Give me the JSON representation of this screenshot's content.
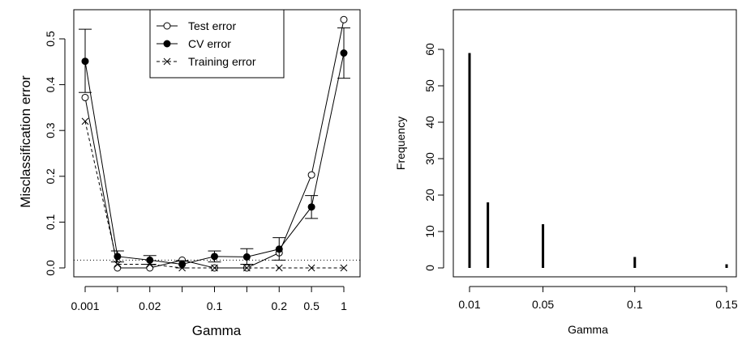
{
  "chart_data": [
    {
      "type": "line",
      "xlabel": "Gamma",
      "ylabel": "Misclassification error",
      "x_tick_labels": [
        "0.001",
        "",
        "0.02",
        "",
        "0.1",
        "",
        "0.2",
        "0.5",
        "1"
      ],
      "ylim": [
        0,
        0.55
      ],
      "y_ticks": [
        0.0,
        0.1,
        0.2,
        0.3,
        0.4,
        0.5
      ],
      "y_tick_labels": [
        "0.0",
        "0.1",
        "0.2",
        "0.3",
        "0.4",
        "0.5"
      ],
      "reference_line": 0.017,
      "legend_position": "top-center",
      "series": [
        {
          "name": "Test error",
          "marker": "open-circle",
          "line": "solid",
          "values": [
            0.372,
            0.0,
            0.0,
            0.017,
            0.0,
            0.0,
            0.033,
            0.203,
            0.542
          ]
        },
        {
          "name": "CV error",
          "marker": "filled-circle",
          "line": "solid",
          "values": [
            0.451,
            0.025,
            0.017,
            0.008,
            0.025,
            0.024,
            0.041,
            0.133,
            0.469
          ],
          "error_low": [
            0.383,
            0.013,
            0.008,
            0.0,
            0.013,
            0.008,
            0.017,
            0.108,
            0.414
          ],
          "error_high": [
            0.521,
            0.037,
            0.027,
            0.016,
            0.037,
            0.042,
            0.066,
            0.158,
            0.524
          ]
        },
        {
          "name": "Training error",
          "marker": "cross",
          "line": "dashed",
          "values": [
            0.32,
            0.008,
            0.008,
            0.0,
            0.0,
            0.0,
            0.0,
            0.0,
            0.0
          ]
        }
      ]
    },
    {
      "type": "bar",
      "xlabel": "Gamma",
      "ylabel": "Frequency",
      "categories": [
        "0.01",
        "0.02",
        "0.05",
        "0.1",
        "0.15"
      ],
      "x_values": [
        0.01,
        0.02,
        0.05,
        0.1,
        0.15
      ],
      "x_tick_values": [
        0.01,
        0.05,
        0.1,
        0.15
      ],
      "x_tick_labels": [
        "0.01",
        "0.05",
        "0.1",
        "0.15"
      ],
      "values": [
        59,
        18,
        12,
        3,
        1
      ],
      "ylim": [
        0,
        60
      ],
      "y_ticks": [
        0,
        10,
        20,
        30,
        40,
        50,
        60
      ],
      "y_tick_labels": [
        "0",
        "10",
        "20",
        "30",
        "40",
        "50",
        "60"
      ]
    }
  ]
}
